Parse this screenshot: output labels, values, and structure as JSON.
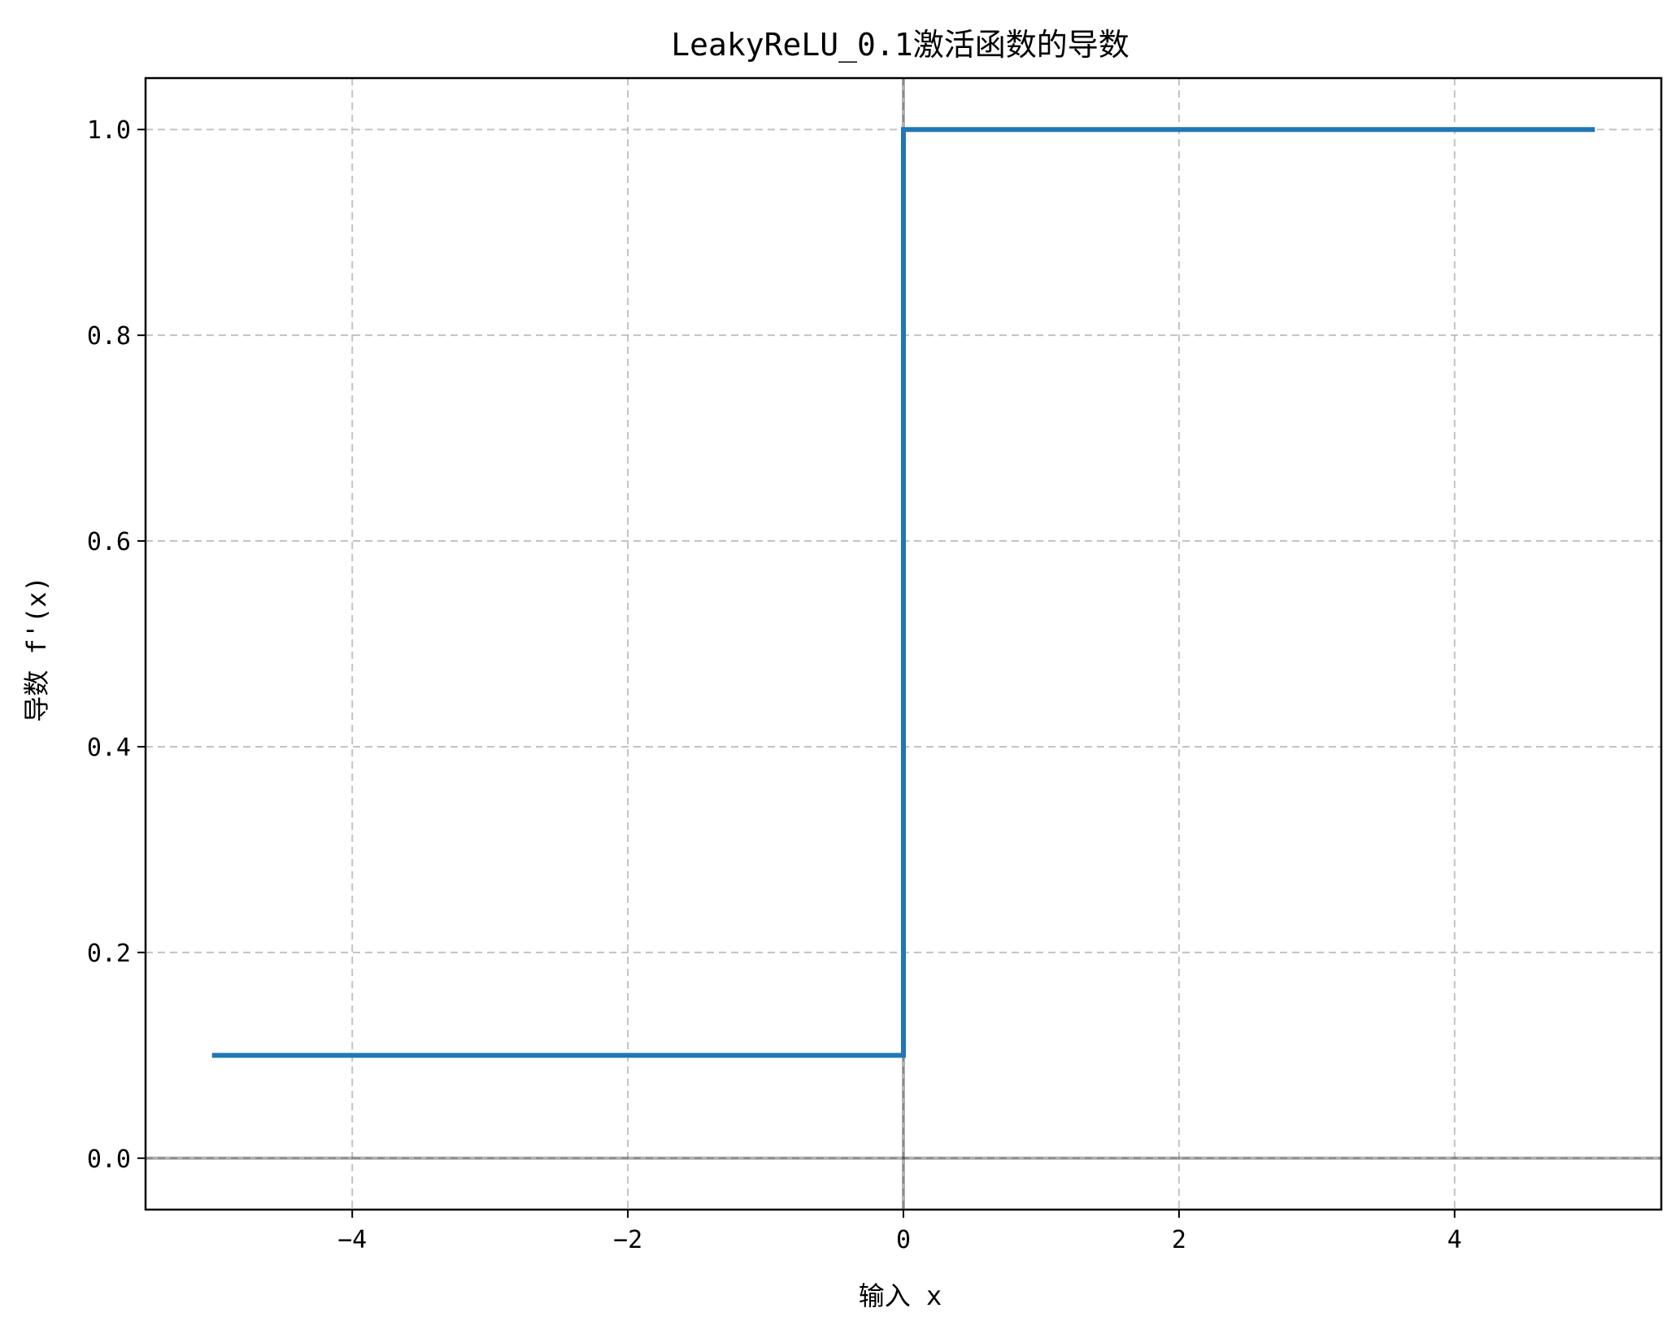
{
  "chart_data": {
    "type": "line",
    "title": "LeakyReLU_0.1激活函数的导数",
    "xlabel": "输入 x",
    "ylabel": "导数 f'(x)",
    "xlim": [
      -5.5,
      5.5
    ],
    "ylim": [
      -0.05,
      1.05
    ],
    "xticks": [
      -4,
      -2,
      0,
      2,
      4
    ],
    "xtick_labels": [
      "−4",
      "−2",
      "0",
      "2",
      "4"
    ],
    "yticks": [
      0.0,
      0.2,
      0.4,
      0.6,
      0.8,
      1.0
    ],
    "ytick_labels": [
      "0.0",
      "0.2",
      "0.4",
      "0.6",
      "0.8",
      "1.0"
    ],
    "grid": true,
    "reference_lines": {
      "x": 0,
      "y": 0
    },
    "series": [
      {
        "color": "#1f77b4",
        "x": [
          -5,
          0,
          0,
          5
        ],
        "y": [
          0.1,
          0.1,
          1.0,
          1.0
        ]
      }
    ]
  },
  "colors": {
    "line": "#1f77b4",
    "grid": "#b0b0b0",
    "reference": "#808080"
  }
}
